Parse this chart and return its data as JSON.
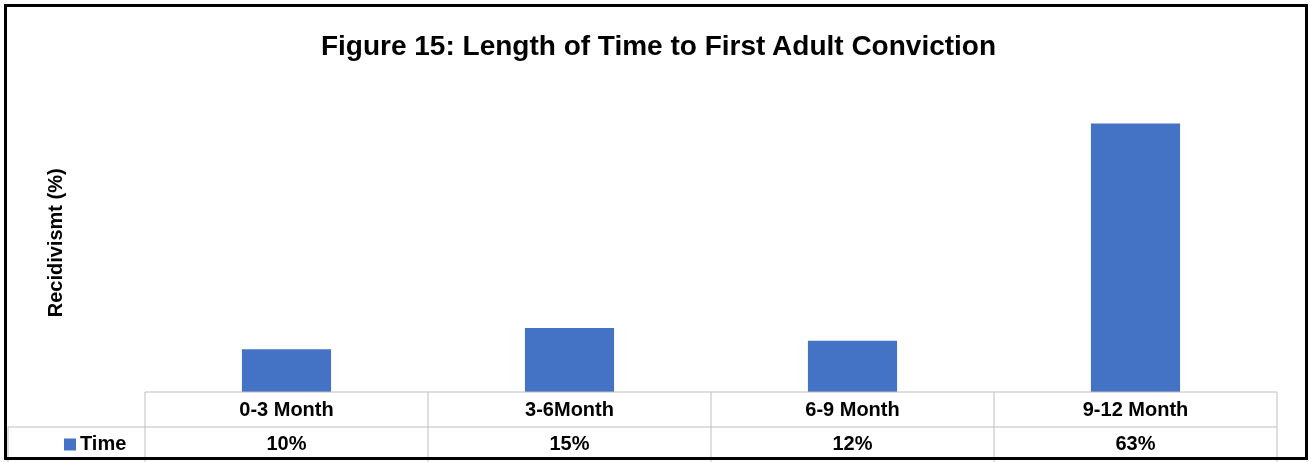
{
  "chart_data": {
    "type": "bar",
    "title": "Figure 15: Length of Time to First Adult Conviction",
    "ylabel": "Recidivismt (%)",
    "categories": [
      "0-3 Month",
      "3-6Month",
      "6-9 Month",
      "9-12 Month"
    ],
    "series": [
      {
        "name": "Time",
        "color": "#4472c4",
        "values": [
          10,
          15,
          12,
          63
        ],
        "value_labels": [
          "10%",
          "15%",
          "12%",
          "63%"
        ]
      }
    ],
    "legend": "bottom",
    "grid": false
  }
}
